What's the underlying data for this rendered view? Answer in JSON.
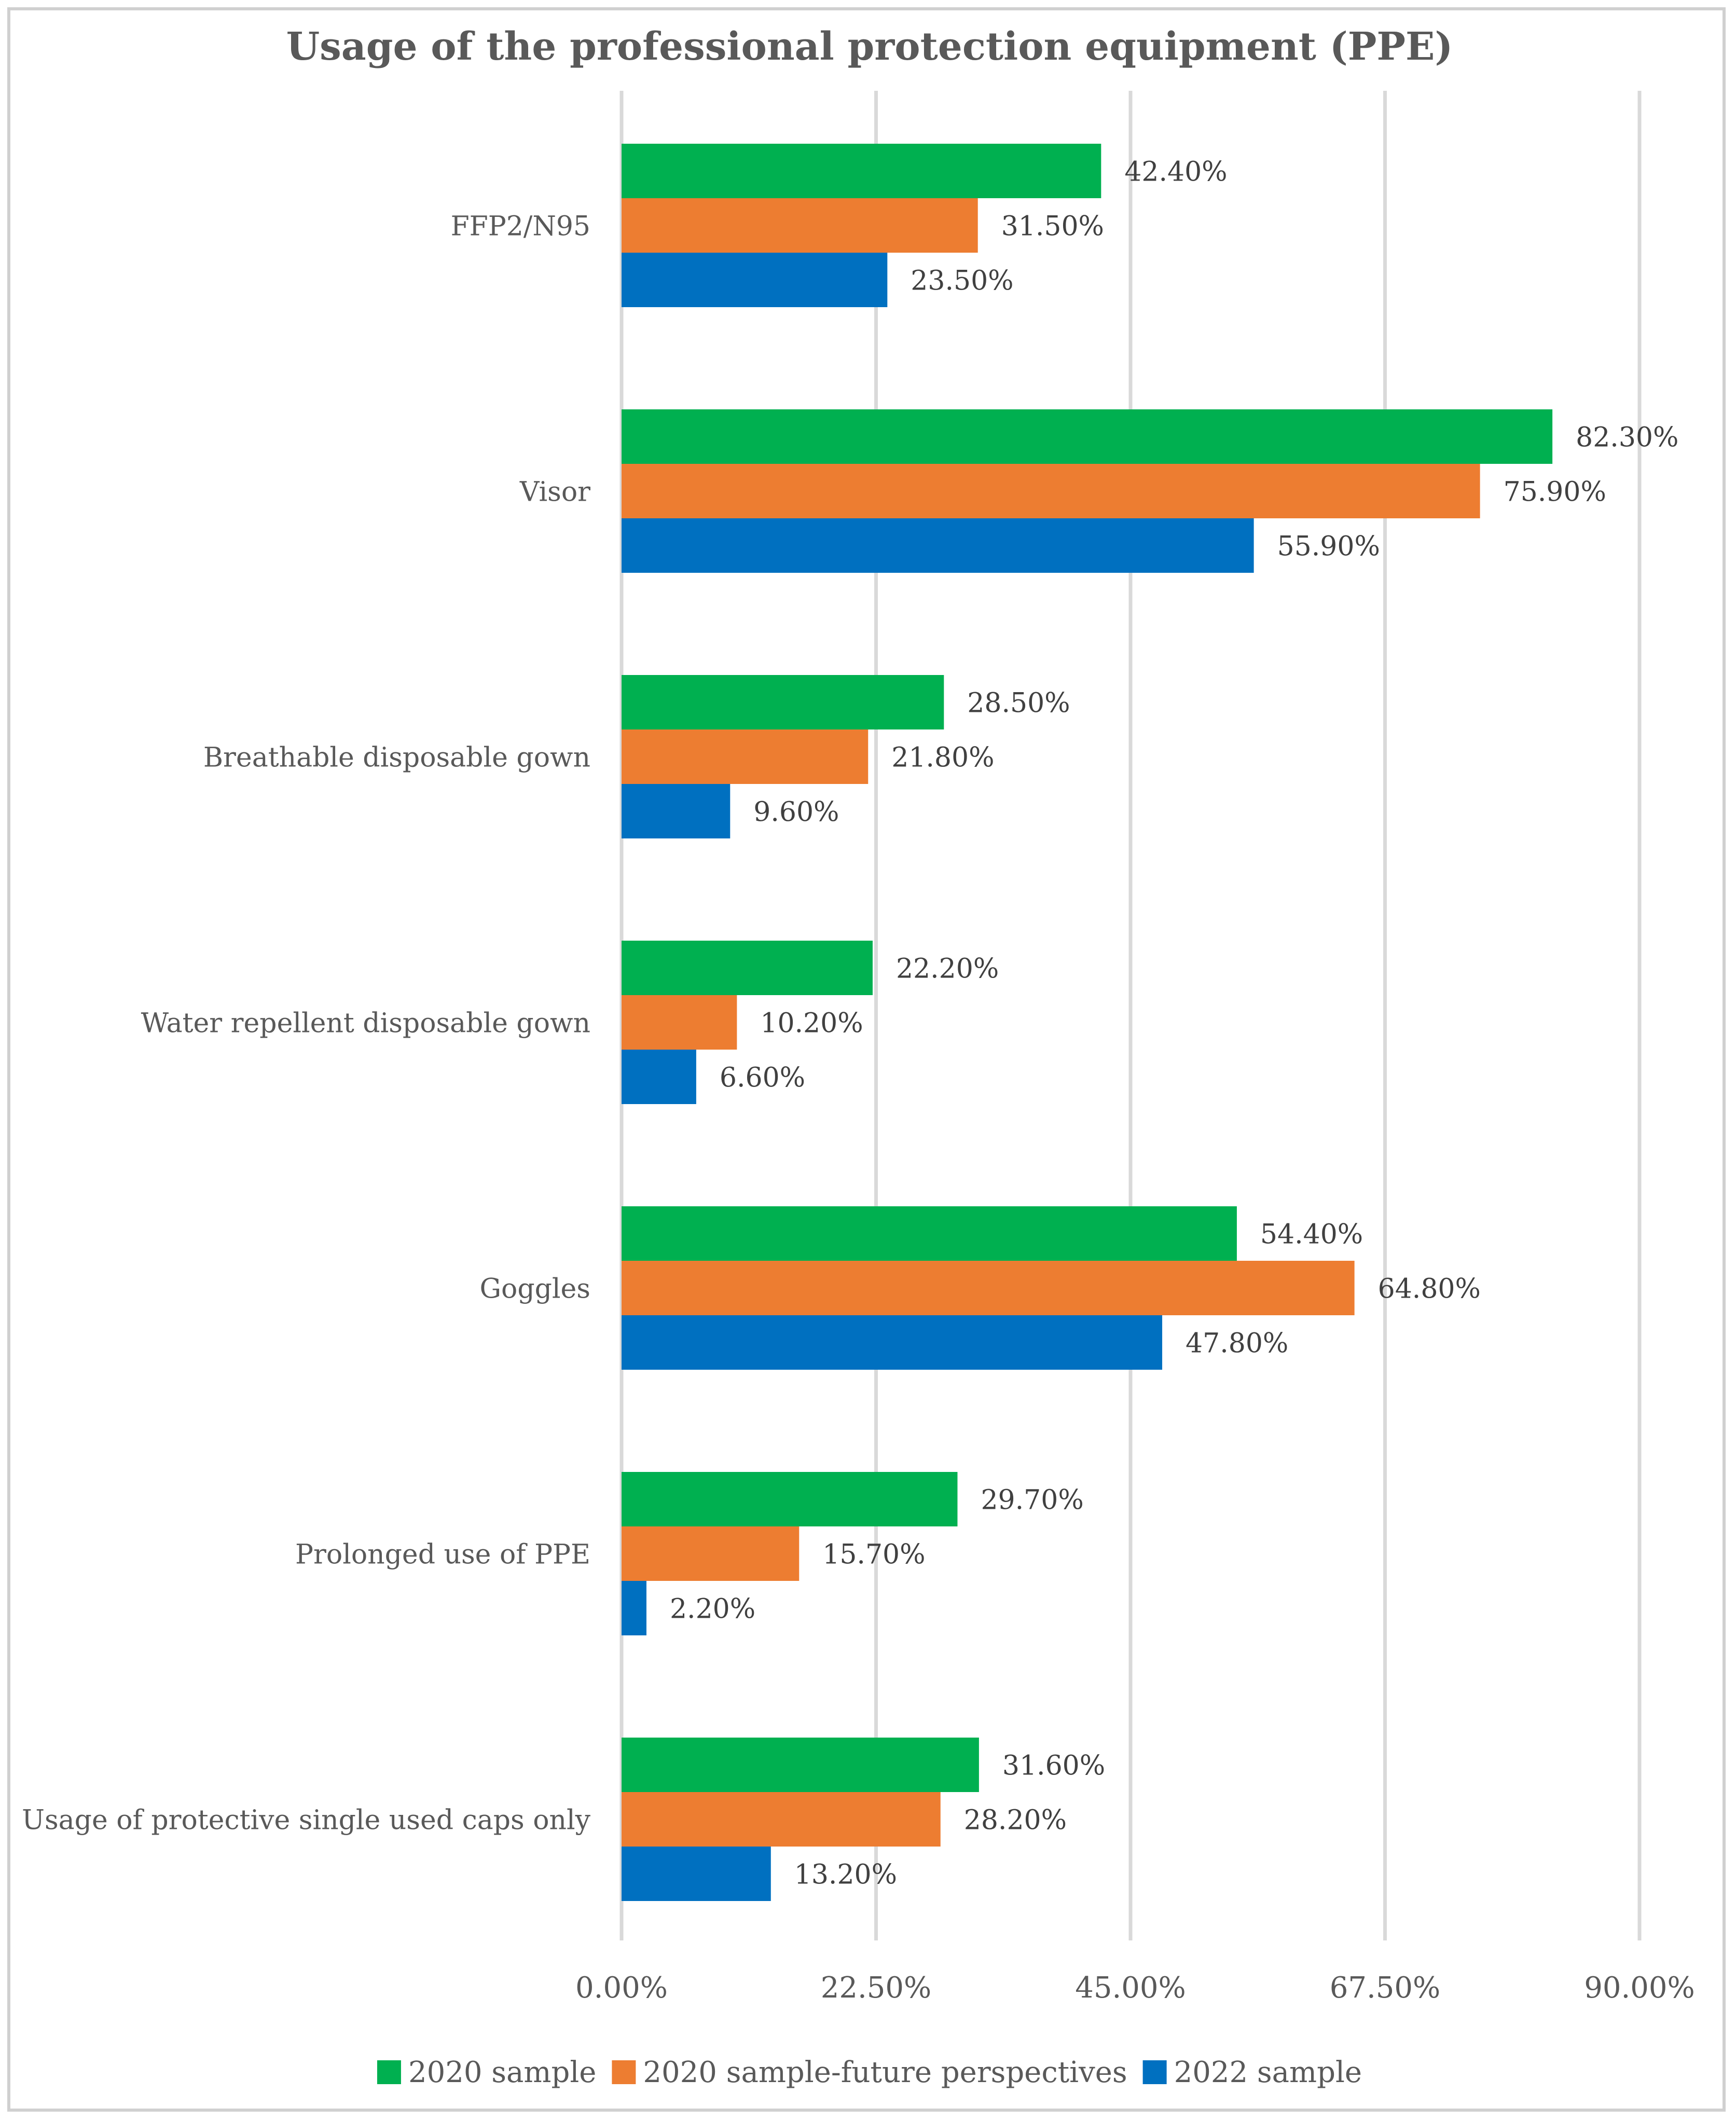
{
  "chart_data": {
    "type": "bar",
    "orientation": "horizontal",
    "title": "Usage of the professional protection equipment (PPE)",
    "categories": [
      "FFP2/N95",
      "Visor",
      "Breathable disposable gown",
      "Water repellent disposable gown",
      "Goggles",
      "Prolonged use of PPE",
      "Usage of protective single used caps only"
    ],
    "series": [
      {
        "name": "2020 sample",
        "color": "#00b050",
        "values": [
          42.4,
          82.3,
          28.5,
          22.2,
          54.4,
          29.7,
          31.6
        ],
        "labels": [
          "42.40%",
          "82.30%",
          "28.50%",
          "22.20%",
          "54.40%",
          "29.70%",
          "31.60%"
        ]
      },
      {
        "name": "2020 sample-future perspectives",
        "color": "#ed7d31",
        "values": [
          31.5,
          75.9,
          21.8,
          10.2,
          64.8,
          15.7,
          28.2
        ],
        "labels": [
          "31.50%",
          "75.90%",
          "21.80%",
          "10.20%",
          "64.80%",
          "15.70%",
          "28.20%"
        ]
      },
      {
        "name": "2022 sample",
        "color": "#0070c0",
        "values": [
          23.5,
          55.9,
          9.6,
          6.6,
          47.8,
          2.2,
          13.2
        ],
        "labels": [
          "23.50%",
          "55.90%",
          "9.60%",
          "6.60%",
          "47.80%",
          "2.20%",
          "13.20%"
        ]
      }
    ],
    "xlim": [
      0,
      90
    ],
    "xticks": [
      0,
      22.5,
      45,
      67.5,
      90
    ],
    "xtick_labels": [
      "0.00%",
      "22.50%",
      "45.00%",
      "67.50%",
      "90.00%"
    ],
    "grid": true,
    "legend_position": "bottom",
    "xlabel": "",
    "ylabel": ""
  }
}
